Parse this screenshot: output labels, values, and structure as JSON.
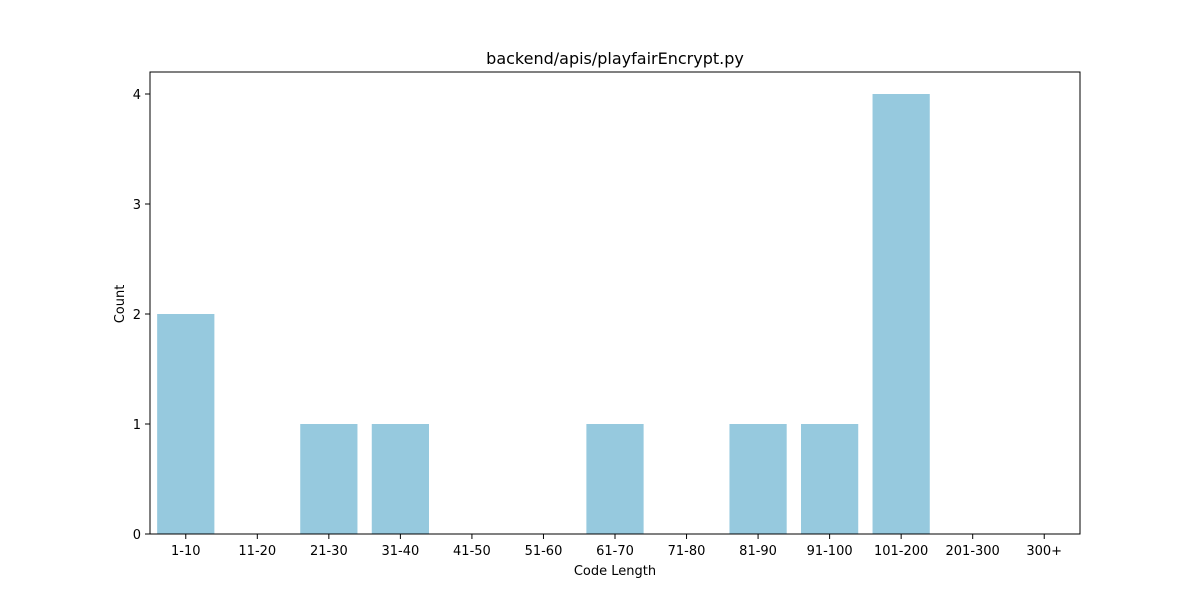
{
  "chart_data": {
    "type": "bar",
    "title": "backend/apis/playfairEncrypt.py",
    "xlabel": "Code Length",
    "ylabel": "Count",
    "categories": [
      "1-10",
      "11-20",
      "21-30",
      "31-40",
      "41-50",
      "51-60",
      "61-70",
      "71-80",
      "81-90",
      "91-100",
      "101-200",
      "201-300",
      "300+"
    ],
    "values": [
      2,
      0,
      1,
      1,
      0,
      0,
      1,
      0,
      1,
      1,
      4,
      0,
      0
    ],
    "ylim": [
      0,
      4.2
    ],
    "yticks": [
      0,
      1,
      2,
      3,
      4
    ],
    "grid": false,
    "legend": false,
    "bar_color": "#96c9de"
  }
}
